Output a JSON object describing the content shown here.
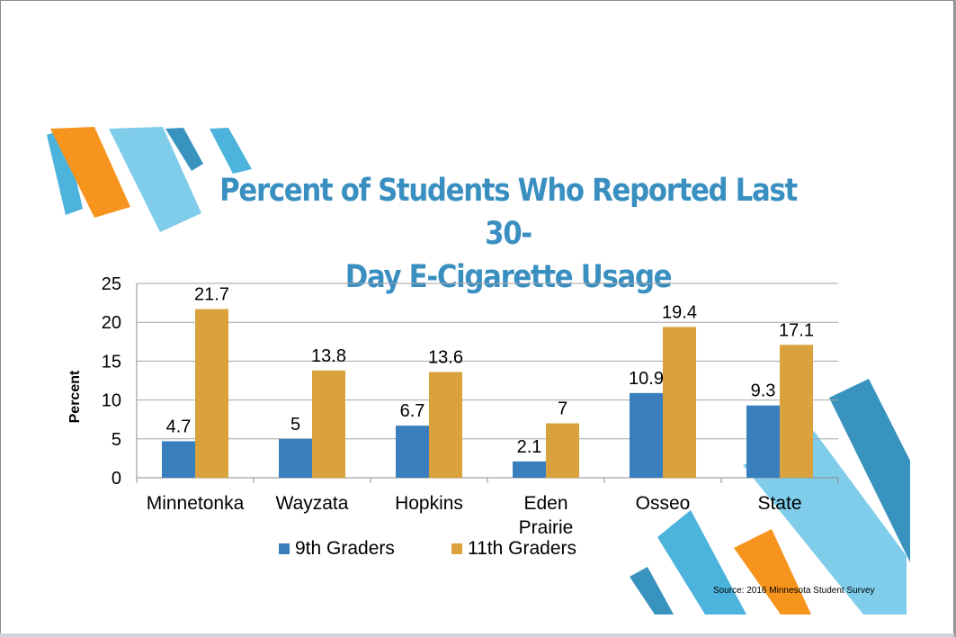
{
  "title": "Percent of Students Who Reported Last 30-Day E-Cigarette Usage",
  "title_lines": [
    "Percent of Students Who Reported Last 30-",
    "Day E-Cigarette Usage"
  ],
  "source": "Source: 2016 Minnesota Student Survey",
  "colors": {
    "series_9th": "#3a7fbd",
    "series_11th": "#d9a23c",
    "title": "#3a8fc1",
    "deco_orange": "#f7941d",
    "deco_light_blue": "#7fcdea",
    "deco_mid_blue": "#4bb3dc",
    "deco_dark_blue": "#3893bf"
  },
  "chart_data": {
    "type": "bar",
    "title": "Percent of Students Who Reported Last 30-Day E-Cigarette Usage",
    "xlabel": "",
    "ylabel": "Percent",
    "ylim": [
      0,
      25
    ],
    "yticks": [
      "0",
      "5",
      "10",
      "15",
      "20",
      "25"
    ],
    "grid": true,
    "legend_position": "bottom",
    "categories": [
      "Minnetonka",
      "Wayzata",
      "Hopkins",
      "Eden Prairie",
      "Osseo",
      "State"
    ],
    "category_label_lines": [
      [
        "Minnetonka"
      ],
      [
        "Wayzata"
      ],
      [
        "Hopkins"
      ],
      [
        "Eden",
        "Prairie"
      ],
      [
        "Osseo"
      ],
      [
        "State"
      ]
    ],
    "series": [
      {
        "name": "9th Graders",
        "values": [
          4.7,
          5,
          6.7,
          2.1,
          10.9,
          9.3
        ],
        "labels": [
          "4.7",
          "5",
          "6.7",
          "2.1",
          "10.9",
          "9.3"
        ]
      },
      {
        "name": "11th Graders",
        "values": [
          21.7,
          13.8,
          13.6,
          7,
          19.4,
          17.1
        ],
        "labels": [
          "21.7",
          "13.8",
          "13.6",
          "7",
          "19.4",
          "17.1"
        ]
      }
    ]
  }
}
